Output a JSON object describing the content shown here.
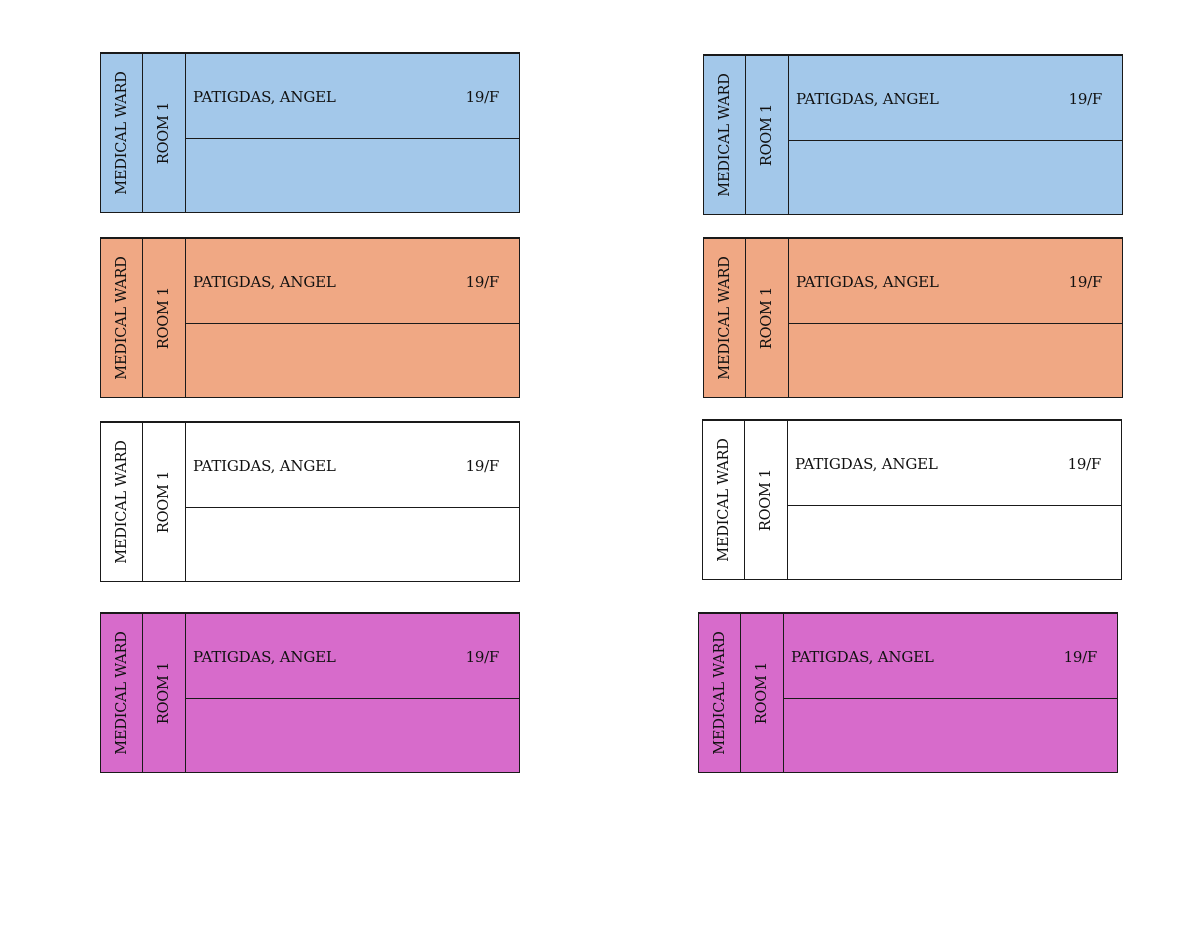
{
  "colors": {
    "blue": "#a3c8ea",
    "orange": "#f0a884",
    "white": "#ffffff",
    "magenta": "#d76bcb"
  },
  "cards": [
    {
      "ward": "MEDICAL WARD",
      "room": "ROOM 1",
      "name": "PATIGDAS, ANGEL",
      "age_sex": "19/F",
      "color": "#a3c8ea"
    },
    {
      "ward": "MEDICAL WARD",
      "room": "ROOM 1",
      "name": "PATIGDAS, ANGEL",
      "age_sex": "19/F",
      "color": "#a3c8ea"
    },
    {
      "ward": "MEDICAL WARD",
      "room": "ROOM 1",
      "name": "PATIGDAS, ANGEL",
      "age_sex": "19/F",
      "color": "#f0a884"
    },
    {
      "ward": "MEDICAL WARD",
      "room": "ROOM 1",
      "name": "PATIGDAS, ANGEL",
      "age_sex": "19/F",
      "color": "#f0a884"
    },
    {
      "ward": "MEDICAL WARD",
      "room": "ROOM 1",
      "name": "PATIGDAS, ANGEL",
      "age_sex": "19/F",
      "color": "#ffffff"
    },
    {
      "ward": "MEDICAL WARD",
      "room": "ROOM 1",
      "name": "PATIGDAS, ANGEL",
      "age_sex": "19/F",
      "color": "#ffffff"
    },
    {
      "ward": "MEDICAL WARD",
      "room": "ROOM 1",
      "name": "PATIGDAS, ANGEL",
      "age_sex": "19/F",
      "color": "#d76bcb"
    },
    {
      "ward": "MEDICAL WARD",
      "room": "ROOM 1",
      "name": "PATIGDAS, ANGEL",
      "age_sex": "19/F",
      "color": "#d76bcb"
    }
  ]
}
